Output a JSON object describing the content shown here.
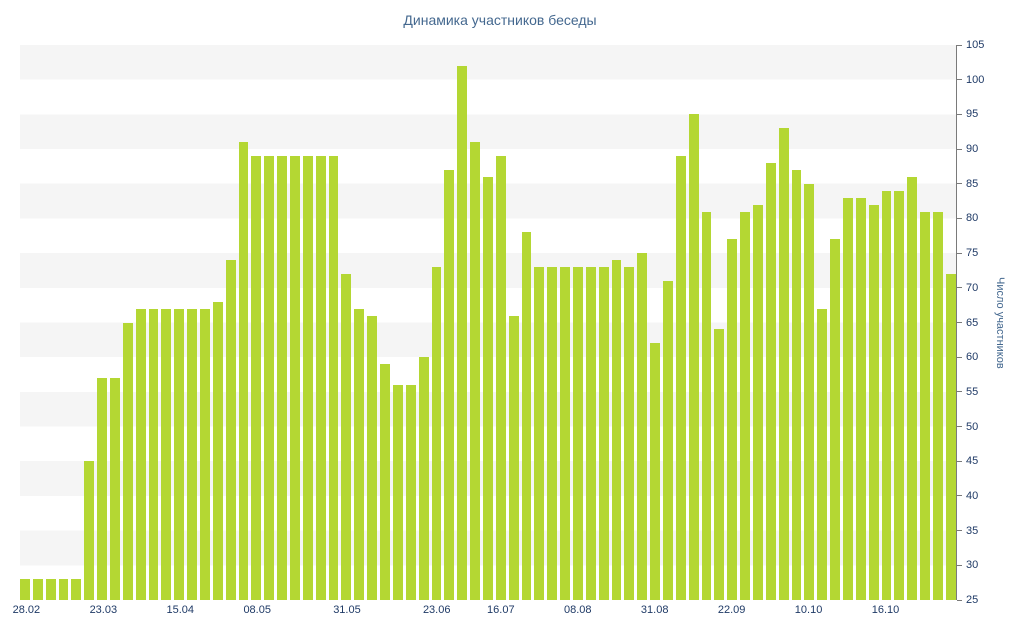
{
  "title": "Динамика участников беседы",
  "y_axis_title": "Число участников",
  "colors": {
    "background": "#ffffff",
    "bar": "#b4d733",
    "title": "#44688f",
    "tick_label": "#1f3a66",
    "axis_line": "#7a7a7a",
    "stripe": "#f5f5f5"
  },
  "chart_data": {
    "type": "bar",
    "title": "Динамика участников беседы",
    "xlabel": "",
    "ylabel": "Число участников",
    "ylim": [
      25,
      105
    ],
    "y_tick_step": 5,
    "grid": "horizontal-bands",
    "legend": null,
    "values": [
      28,
      28,
      28,
      28,
      28,
      45,
      57,
      57,
      65,
      67,
      67,
      67,
      67,
      67,
      67,
      68,
      74,
      91,
      89,
      89,
      89,
      89,
      89,
      89,
      89,
      72,
      67,
      66,
      59,
      56,
      56,
      60,
      73,
      87,
      102,
      91,
      86,
      89,
      66,
      78,
      73,
      73,
      73,
      73,
      73,
      73,
      74,
      73,
      75,
      62,
      71,
      89,
      95,
      81,
      64,
      77,
      81,
      82,
      88,
      93,
      87,
      85,
      67,
      77,
      83,
      83,
      82,
      84,
      84,
      86,
      81,
      81,
      72
    ],
    "x_ticks": [
      {
        "label": "28.02",
        "index": 0
      },
      {
        "label": "23.03",
        "index": 6
      },
      {
        "label": "15.04",
        "index": 12
      },
      {
        "label": "08.05",
        "index": 18
      },
      {
        "label": "31.05",
        "index": 25
      },
      {
        "label": "23.06",
        "index": 32
      },
      {
        "label": "16.07",
        "index": 37
      },
      {
        "label": "08.08",
        "index": 43
      },
      {
        "label": "31.08",
        "index": 49
      },
      {
        "label": "22.09",
        "index": 55
      },
      {
        "label": "10.10",
        "index": 61
      },
      {
        "label": "16.10",
        "index": 67
      }
    ]
  }
}
